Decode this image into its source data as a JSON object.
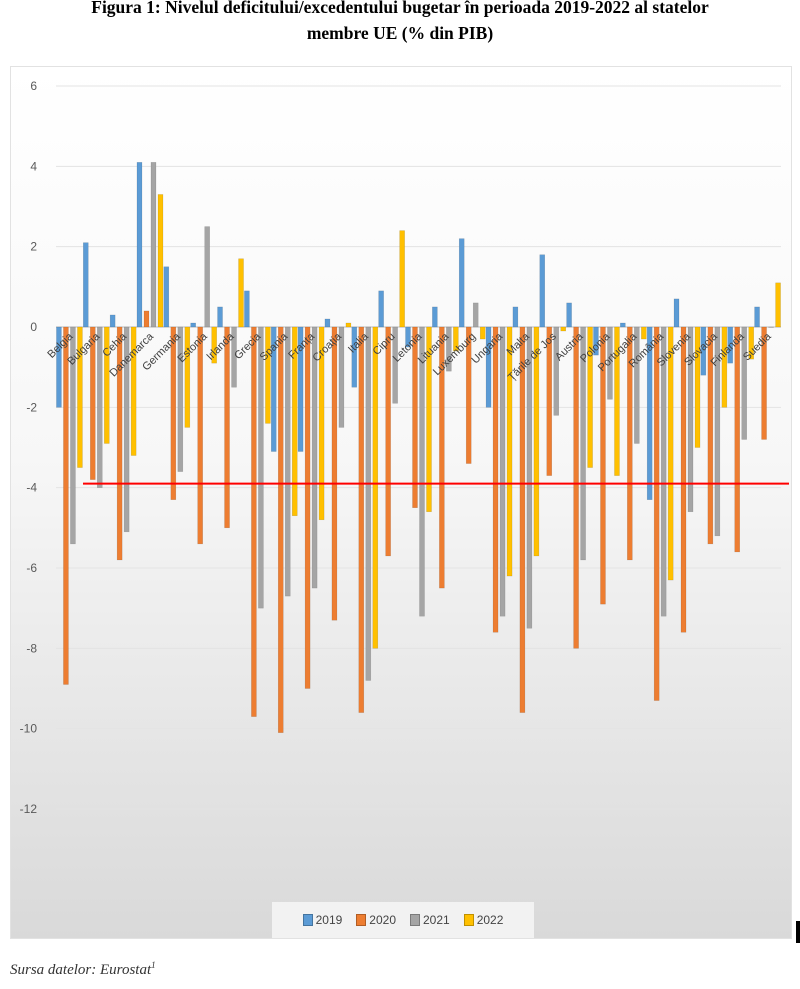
{
  "figure": {
    "title_line1": "Figura 1: Nivelul deficitului/excedentului bugetar în perioada 2019-2022 al statelor",
    "title_line2": "membre UE (% din PIB)",
    "source_text": "Sursa datelor: Eurostat",
    "source_note": "1"
  },
  "chart_data": {
    "type": "bar",
    "title": "",
    "xlabel": "",
    "ylabel": "",
    "ylim": [
      -14,
      6
    ],
    "yticks": [
      6,
      4,
      2,
      0,
      -2,
      -4,
      -6,
      -8,
      -10,
      -12
    ],
    "grid": true,
    "legend_position": "bottom",
    "categories": [
      "Belgia",
      "Bulgaria",
      "Cehia",
      "Danemarca",
      "Germania",
      "Estonia",
      "Irlanda",
      "Grecia",
      "Spania",
      "Franța",
      "Croația",
      "Italia",
      "Cipru",
      "Letonia",
      "Lituania",
      "Luxemburg",
      "Ungaria",
      "Malta",
      "Țările de Jos",
      "Austria",
      "Polonia",
      "Portugalia",
      "România",
      "Slovenia",
      "Slovacia",
      "Finlanda",
      "Suedia"
    ],
    "series": [
      {
        "name": "2019",
        "color": "#5b9bd5",
        "values": [
          -2.0,
          2.1,
          0.3,
          4.1,
          1.5,
          0.1,
          0.5,
          0.9,
          -3.1,
          -3.1,
          0.2,
          -1.5,
          0.9,
          -0.5,
          0.5,
          2.2,
          -2.0,
          0.5,
          1.8,
          0.6,
          -0.7,
          0.1,
          -4.3,
          0.7,
          -1.2,
          -0.9,
          0.5
        ]
      },
      {
        "name": "2020",
        "color": "#ed7d31",
        "values": [
          -8.9,
          -3.8,
          -5.8,
          0.4,
          -4.3,
          -5.4,
          -5.0,
          -9.7,
          -10.1,
          -9.0,
          -7.3,
          -9.6,
          -5.7,
          -4.5,
          -6.5,
          -3.4,
          -7.6,
          -9.6,
          -3.7,
          -8.0,
          -6.9,
          -5.8,
          -9.3,
          -7.6,
          -5.4,
          -5.6,
          -2.8
        ]
      },
      {
        "name": "2021",
        "color": "#a5a5a5",
        "values": [
          -5.4,
          -4.0,
          -5.1,
          4.1,
          -3.6,
          2.5,
          -1.5,
          -7.0,
          -6.7,
          -6.5,
          -2.5,
          -8.8,
          -1.9,
          -7.2,
          -1.1,
          0.6,
          -7.2,
          -7.5,
          -2.2,
          -5.8,
          -1.8,
          -2.9,
          -7.2,
          -4.6,
          -5.2,
          -2.8,
          0.0
        ]
      },
      {
        "name": "2022",
        "color": "#ffc000",
        "values": [
          -3.5,
          -2.9,
          -3.2,
          3.3,
          -2.5,
          -0.9,
          1.7,
          -2.4,
          -4.7,
          -4.8,
          0.1,
          -8.0,
          2.4,
          -4.6,
          -0.6,
          -0.3,
          -6.2,
          -5.7,
          -0.1,
          -3.5,
          -3.7,
          -0.3,
          -6.3,
          -3.0,
          -2.0,
          -0.8,
          1.1
        ]
      }
    ],
    "reference_line": {
      "value": -3.9,
      "color": "#ff0000"
    }
  }
}
